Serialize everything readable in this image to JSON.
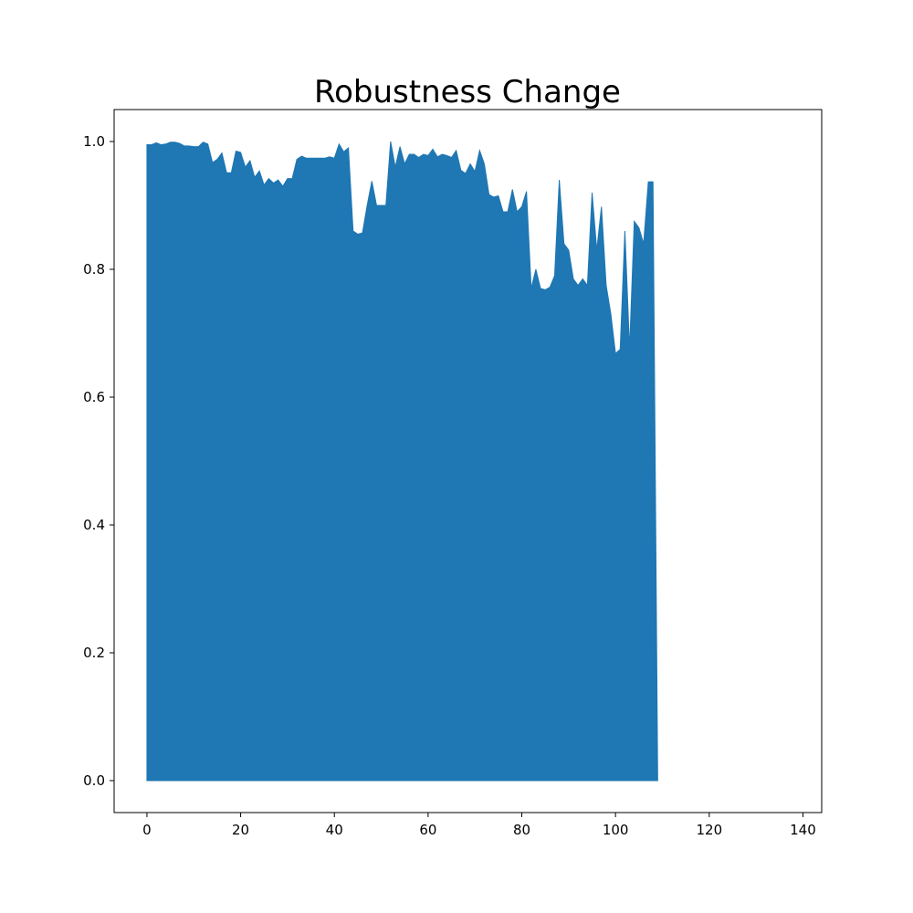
{
  "chart_data": {
    "type": "area",
    "title": "Robustness Change",
    "xlabel": "",
    "ylabel": "",
    "xlim": [
      -7,
      144
    ],
    "ylim": [
      -0.05,
      1.05
    ],
    "xticks": [
      0,
      20,
      40,
      60,
      80,
      100,
      120,
      140
    ],
    "yticks": [
      0.0,
      0.2,
      0.4,
      0.6,
      0.8,
      1.0
    ],
    "xtick_labels": [
      "0",
      "20",
      "40",
      "60",
      "80",
      "100",
      "120",
      "140"
    ],
    "ytick_labels": [
      "0.0",
      "0.2",
      "0.4",
      "0.6",
      "0.8",
      "1.0"
    ],
    "grid": false,
    "fill_color": "#1f77b4",
    "series": [
      {
        "x": [
          0,
          1,
          2,
          3,
          4,
          5,
          6,
          7,
          8,
          9,
          10,
          11,
          12,
          13,
          14,
          15,
          16,
          17,
          18,
          19,
          20,
          21,
          22,
          23,
          24,
          25,
          26,
          27,
          28,
          29,
          30,
          31,
          32,
          33,
          34,
          35,
          36,
          37,
          38,
          39,
          40,
          41,
          42,
          43,
          44,
          45,
          46,
          47,
          48,
          49,
          50,
          51,
          52,
          53,
          54,
          55,
          56,
          57,
          58,
          59,
          60,
          61,
          62,
          63,
          64,
          65,
          66,
          67,
          68,
          69,
          70,
          71,
          72,
          73,
          74,
          75,
          76,
          77,
          78,
          79,
          80,
          81,
          82,
          83,
          84,
          85,
          86,
          87,
          88,
          89,
          90,
          91,
          92,
          93,
          94,
          95,
          96,
          97,
          98,
          99,
          100,
          101,
          102,
          103,
          104,
          105,
          106,
          107,
          108,
          109
        ],
        "values": [
          0.995,
          0.995,
          0.998,
          0.995,
          0.996,
          0.999,
          0.999,
          0.997,
          0.993,
          0.993,
          0.992,
          0.992,
          0.999,
          0.996,
          0.967,
          0.972,
          0.982,
          0.951,
          0.951,
          0.985,
          0.983,
          0.96,
          0.97,
          0.944,
          0.954,
          0.932,
          0.942,
          0.935,
          0.94,
          0.93,
          0.942,
          0.942,
          0.972,
          0.977,
          0.974,
          0.974,
          0.974,
          0.974,
          0.974,
          0.976,
          0.974,
          0.996,
          0.984,
          0.99,
          0.86,
          0.855,
          0.857,
          0.9,
          0.938,
          0.9,
          0.9,
          0.9,
          1.0,
          0.96,
          0.992,
          0.965,
          0.98,
          0.98,
          0.975,
          0.98,
          0.978,
          0.988,
          0.976,
          0.98,
          0.978,
          0.975,
          0.986,
          0.955,
          0.95,
          0.965,
          0.953,
          0.986,
          0.965,
          0.917,
          0.913,
          0.915,
          0.89,
          0.89,
          0.925,
          0.89,
          0.898,
          0.922,
          0.77,
          0.8,
          0.77,
          0.768,
          0.772,
          0.79,
          0.94,
          0.84,
          0.83,
          0.785,
          0.775,
          0.785,
          0.775,
          0.92,
          0.83,
          0.898,
          0.775,
          0.73,
          0.668,
          0.675,
          0.86,
          0.675,
          0.875,
          0.865,
          0.84,
          0.937,
          0.937,
          0.0
        ]
      }
    ]
  }
}
